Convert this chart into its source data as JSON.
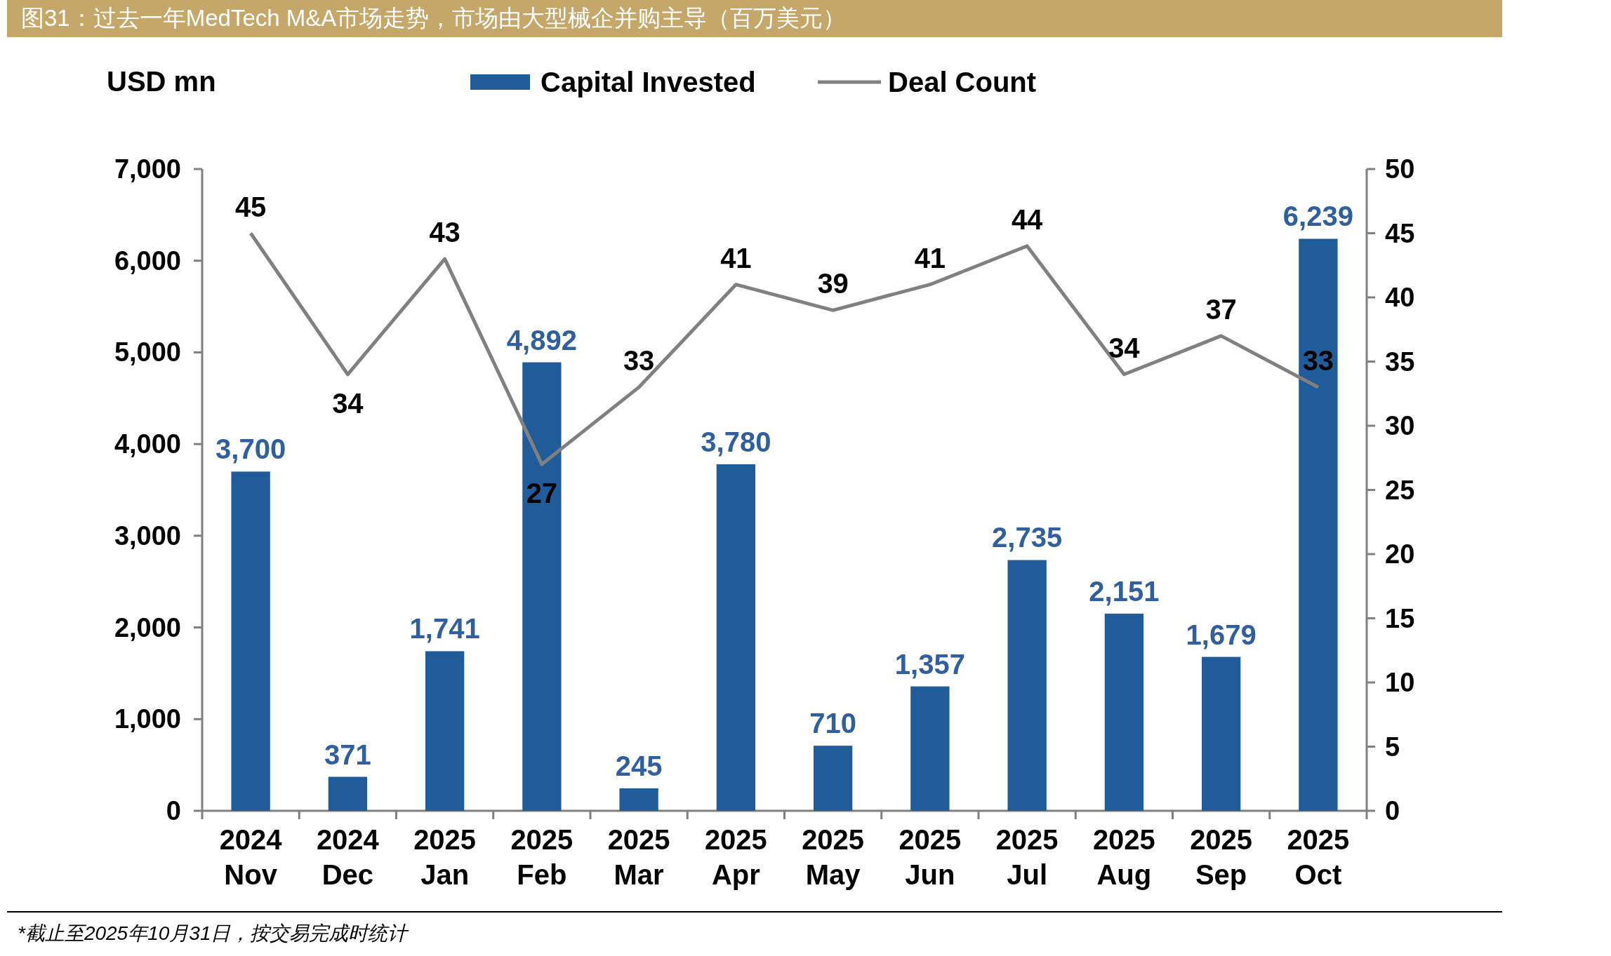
{
  "chart_data": {
    "type": "bar",
    "title": "图31：过去一年MedTech M&A市场走势，市场由大型械企并购主导（百万美元）",
    "ylabel": "USD mn",
    "legend": "top",
    "grid": false,
    "marker": "none",
    "categories": [
      "2024 Nov",
      "2024 Dec",
      "2025 Jan",
      "2025 Feb",
      "2025 Mar",
      "2025 Apr",
      "2025 May",
      "2025 Jun",
      "2025 Jul",
      "2025 Aug",
      "2025 Sep",
      "2025 Oct"
    ],
    "series": [
      {
        "name": "Capital Invested",
        "color": "#1f5c99",
        "values": [
          3700,
          371,
          1741,
          4892,
          245,
          3780,
          710,
          1357,
          2735,
          2151,
          1679,
          6239
        ],
        "value_labels": [
          "3,700",
          "371",
          "1,741",
          "4,892",
          "245",
          "3,780",
          "710",
          "1,357",
          "2,735",
          "2,151",
          "1,679",
          "6,239"
        ]
      },
      {
        "name": "Deal Count",
        "type": "line",
        "axis": "y2",
        "color": "#808080",
        "line_style": "solid",
        "values": [
          45,
          34,
          43,
          27,
          33,
          41,
          39,
          41,
          44,
          34,
          37,
          33
        ],
        "value_labels": [
          "45",
          "34",
          "43",
          "27",
          "33",
          "41",
          "39",
          "41",
          "44",
          "34",
          "37",
          "33"
        ]
      }
    ],
    "ylim": [
      0,
      7000
    ],
    "yticks": [
      0,
      {
        "value": 1000,
        "label": "1,000"
      },
      {
        "value": 2000,
        "label": "2,000"
      },
      {
        "value": 3000,
        "label": "3,000"
      },
      {
        "value": 4000,
        "label": "4,000"
      },
      {
        "value": 5000,
        "label": "5,000"
      },
      {
        "value": 6000,
        "label": "6,000"
      },
      {
        "value": 7000,
        "label": "7,000"
      }
    ],
    "y2lim": [
      0,
      50
    ],
    "y2ticks": [
      0,
      5,
      10,
      15,
      20,
      25,
      30,
      35,
      40,
      45,
      50
    ],
    "annotations": [
      "*截止至2025年10月31日，按交易完成时统计"
    ]
  }
}
